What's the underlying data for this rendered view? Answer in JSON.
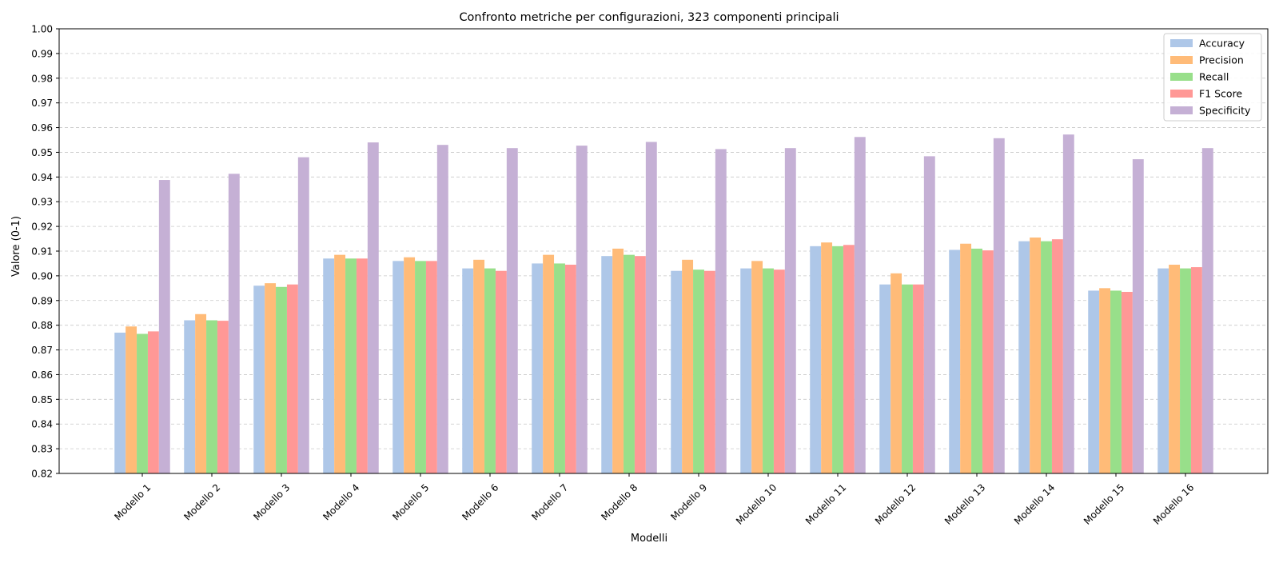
{
  "chart_data": {
    "type": "bar",
    "title": "Confronto metriche per configurazioni, 323 componenti principali",
    "xlabel": "Modelli",
    "ylabel": "Valore (0-1)",
    "ylim": [
      0.82,
      1.0
    ],
    "yticks": [
      "0.82",
      "0.83",
      "0.84",
      "0.85",
      "0.86",
      "0.87",
      "0.88",
      "0.89",
      "0.90",
      "0.91",
      "0.92",
      "0.93",
      "0.94",
      "0.95",
      "0.96",
      "0.97",
      "0.98",
      "0.99",
      "1.00"
    ],
    "grid": "horizontal dashed",
    "legend_position": "top-right",
    "categories": [
      "Modello 1",
      "Modello 2",
      "Modello 3",
      "Modello 4",
      "Modello 5",
      "Modello 6",
      "Modello 7",
      "Modello 8",
      "Modello 9",
      "Modello 10",
      "Modello 11",
      "Modello 12",
      "Modello 13",
      "Modello 14",
      "Modello 15",
      "Modello 16"
    ],
    "series": [
      {
        "name": "Accuracy",
        "color": "#aec7e8",
        "values": [
          0.877,
          0.882,
          0.896,
          0.907,
          0.906,
          0.903,
          0.905,
          0.908,
          0.902,
          0.903,
          0.912,
          0.8965,
          0.9105,
          0.914,
          0.894,
          0.903
        ]
      },
      {
        "name": "Precision",
        "color": "#ffbb78",
        "values": [
          0.8795,
          0.8845,
          0.897,
          0.9085,
          0.9075,
          0.9065,
          0.9085,
          0.911,
          0.9065,
          0.906,
          0.9135,
          0.901,
          0.913,
          0.9155,
          0.895,
          0.9045
        ]
      },
      {
        "name": "Recall",
        "color": "#98df8a",
        "values": [
          0.8765,
          0.882,
          0.8955,
          0.907,
          0.906,
          0.903,
          0.905,
          0.9085,
          0.9025,
          0.903,
          0.912,
          0.8965,
          0.911,
          0.914,
          0.894,
          0.903
        ]
      },
      {
        "name": "F1 Score",
        "color": "#ff9896",
        "values": [
          0.8775,
          0.8818,
          0.8965,
          0.907,
          0.906,
          0.902,
          0.9045,
          0.908,
          0.902,
          0.9025,
          0.9125,
          0.8965,
          0.9103,
          0.9148,
          0.8935,
          0.9035
        ]
      },
      {
        "name": "Specificity",
        "color": "#c5b0d5",
        "values": [
          0.9388,
          0.9413,
          0.948,
          0.954,
          0.953,
          0.9517,
          0.9527,
          0.9542,
          0.9513,
          0.9517,
          0.9562,
          0.9484,
          0.9557,
          0.9572,
          0.9472,
          0.9517
        ]
      }
    ]
  }
}
